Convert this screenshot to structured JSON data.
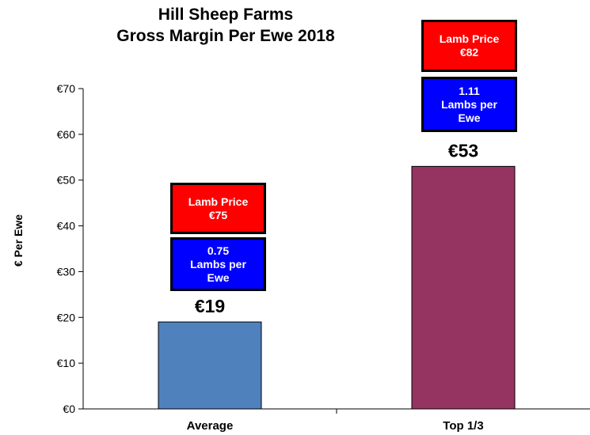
{
  "title_line1": "Hill Sheep Farms",
  "title_line2": "Gross Margin Per Ewe 2018",
  "colors": {
    "average_bar": "#4f81bd",
    "top_bar": "#953461",
    "price_box": "#ff0000",
    "lambs_box": "#0000ff"
  },
  "chart_data": {
    "type": "bar",
    "title": "Hill Sheep Farms Gross Margin Per Ewe 2018",
    "xlabel": "",
    "ylabel": "€ Per Ewe",
    "categories": [
      "Average",
      "Top 1/3"
    ],
    "values": [
      19,
      53
    ],
    "value_labels": [
      "€19",
      "€53"
    ],
    "ylim": [
      0,
      70
    ],
    "yticks": [
      0,
      10,
      20,
      30,
      40,
      50,
      60,
      70
    ],
    "ytick_labels": [
      "€0",
      "€10",
      "€20",
      "€30",
      "€40",
      "€50",
      "€60",
      "€70"
    ],
    "grid": false,
    "annotations": [
      {
        "category": "Average",
        "price_line1": "Lamb Price",
        "price_line2": "€75",
        "lambs_line1": "0.75",
        "lambs_line2": "Lambs per",
        "lambs_line3": "Ewe"
      },
      {
        "category": "Top 1/3",
        "price_line1": "Lamb Price",
        "price_line2": "€82",
        "lambs_line1": "1.11",
        "lambs_line2": "Lambs per",
        "lambs_line3": "Ewe"
      }
    ]
  }
}
